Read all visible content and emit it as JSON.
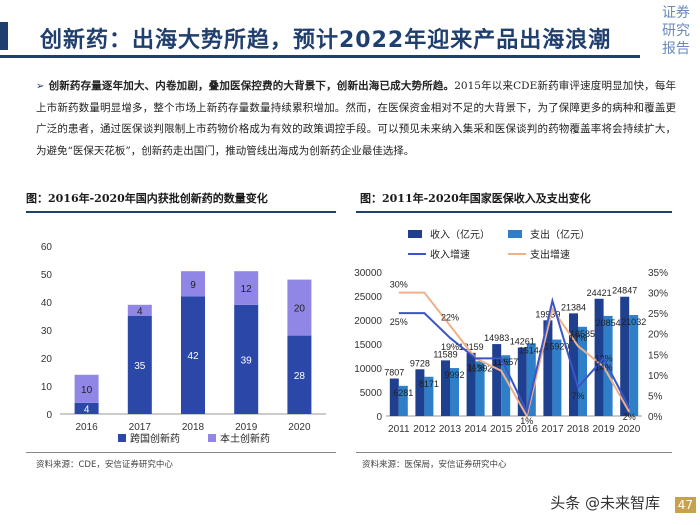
{
  "header": {
    "title": "创新药：出海大势所趋，预计2022年迎来产品出海浪潮",
    "corner_label": "证券研究报告"
  },
  "intro": {
    "bullet": "➢",
    "lead": "创新药存量逐年加大、内卷加剧，叠加医保控费的大背景下，创新出海已成大势所趋。",
    "body": "2015年以来CDE新药审评速度明显加快，每年上市新药数量明显增多，整个市场上新药存量数量持续累积增加。然而，在医保资金相对不足的大背景下，为了保障更多的病种和覆盖更广泛的患者，通过医保谈判限制上市药物价格成为有效的政策调控手段。可以预见未来纳入集采和医保谈判的药物覆盖率将会持续扩大，为避免“医保天花板”，创新药走出国门，推动管线出海成为创新药企业最佳选择。"
  },
  "figures": {
    "left": {
      "title": "图：2016年-2020年国内获批创新药的数量变化",
      "source": "资料来源：CDE，安信证券研究中心"
    },
    "right": {
      "title": "图：2011年-2020年国家医保收入及支出变化",
      "source": "资料来源：医保局，安信证券研究中心"
    }
  },
  "footer": {
    "watermark": "头条 @未来智库",
    "page_number": "47"
  },
  "colors": {
    "navy": "#1f3f6e",
    "bar_dark": "#2b48a8",
    "bar_light": "#8f86e6",
    "income_bar": "#1f3f8f",
    "expense_bar": "#2f7fc8",
    "income_growth_line": "#3a55c8",
    "expense_growth_line": "#f0b08a"
  },
  "chart_data": [
    {
      "type": "bar",
      "stacked": true,
      "categories": [
        "2016",
        "2017",
        "2018",
        "2019",
        "2020"
      ],
      "series": [
        {
          "name": "跨国创新药",
          "values": [
            4,
            35,
            42,
            39,
            28
          ]
        },
        {
          "name": "本土创新药",
          "values": [
            10,
            4,
            9,
            12,
            20
          ]
        }
      ],
      "data_labels": [
        [
          "4",
          "35",
          "42",
          "39",
          "28"
        ],
        [
          "10",
          "4",
          "9",
          "12",
          "20"
        ]
      ],
      "ylim": [
        0,
        60
      ],
      "yticks": [
        0,
        10,
        20,
        30,
        40,
        50,
        60
      ],
      "legend": "bottom"
    },
    {
      "type": "bar",
      "categories": [
        "2011",
        "2012",
        "2013",
        "2014",
        "2015",
        "2016",
        "2017",
        "2018",
        "2019",
        "2020"
      ],
      "series": [
        {
          "name": "收入（亿元）",
          "values": [
            7807,
            9728,
            11589,
            13159,
            14983,
            14261,
            19939,
            21384,
            24421,
            24847
          ],
          "axis": "left",
          "kind": "bar"
        },
        {
          "name": "支出（亿元）",
          "values": [
            6281,
            8171,
            9992,
            11392,
            12657,
            15144,
            15920,
            18585,
            20854,
            21032
          ],
          "axis": "left",
          "kind": "bar"
        },
        {
          "name": "收入增速",
          "values": [
            25,
            25,
            19,
            14,
            14,
            1,
            28,
            7,
            14,
            2
          ],
          "axis": "right",
          "kind": "line"
        },
        {
          "name": "支出增速",
          "values": [
            30,
            30,
            22,
            14,
            11,
            0,
            26,
            17,
            12,
            1
          ],
          "axis": "right",
          "kind": "line"
        }
      ],
      "data_labels": {
        "income": [
          "7807",
          "9728",
          "11589",
          "13159",
          "14983",
          "14261",
          "19939",
          "21384",
          "24421",
          "24847"
        ],
        "expense": [
          "6281",
          "8171",
          "9992",
          "11392",
          "12657",
          "15144",
          "15920",
          "18585",
          "20854",
          "21032"
        ],
        "income_growth": [
          "25%",
          "",
          "19%",
          "14%",
          "",
          "1%",
          "",
          "7%",
          "14%",
          "2%"
        ],
        "expense_growth": [
          "30%",
          "",
          "22%",
          "",
          "11%",
          "",
          "",
          "17%",
          "12%",
          ""
        ]
      },
      "ylim_left": [
        0,
        30000
      ],
      "yticks_left": [
        0,
        5000,
        10000,
        15000,
        20000,
        25000,
        30000
      ],
      "ylim_right": [
        0,
        35
      ],
      "yticks_right": [
        "0%",
        "5%",
        "10%",
        "15%",
        "20%",
        "25%",
        "30%",
        "35%"
      ],
      "legend": "top"
    }
  ]
}
